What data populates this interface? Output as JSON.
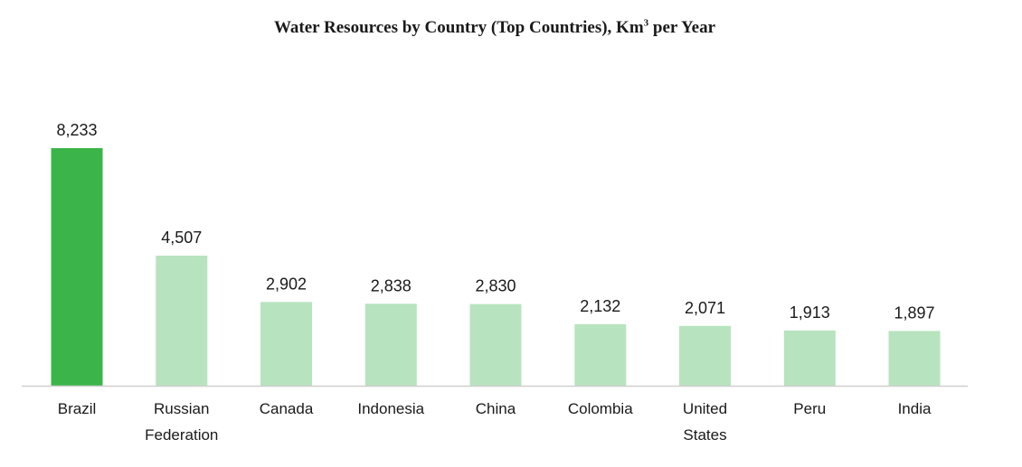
{
  "chart_data": {
    "type": "bar",
    "title_prefix": "Water Resources by Country (Top Countries), Km",
    "title_superscript": "3",
    "title_suffix": " per Year",
    "categories": [
      [
        "Brazil"
      ],
      [
        "Russian",
        "Federation"
      ],
      [
        "Canada"
      ],
      [
        "Indonesia"
      ],
      [
        "China"
      ],
      [
        "Colombia"
      ],
      [
        "United",
        "States"
      ],
      [
        "Peru"
      ],
      [
        "India"
      ]
    ],
    "values": [
      8233,
      4507,
      2902,
      2838,
      2830,
      2132,
      2071,
      1913,
      1897
    ],
    "value_labels": [
      "8,233",
      "4,507",
      "2,902",
      "2,838",
      "2,830",
      "2,132",
      "2,071",
      "1,913",
      "1,897"
    ],
    "highlight_index": 0,
    "colors": {
      "highlight": "#3bb54a",
      "default": "#b7e4be",
      "axis": "#d0d0d0"
    },
    "ylim": [
      0,
      8233
    ],
    "grid": false,
    "legend": "none"
  }
}
